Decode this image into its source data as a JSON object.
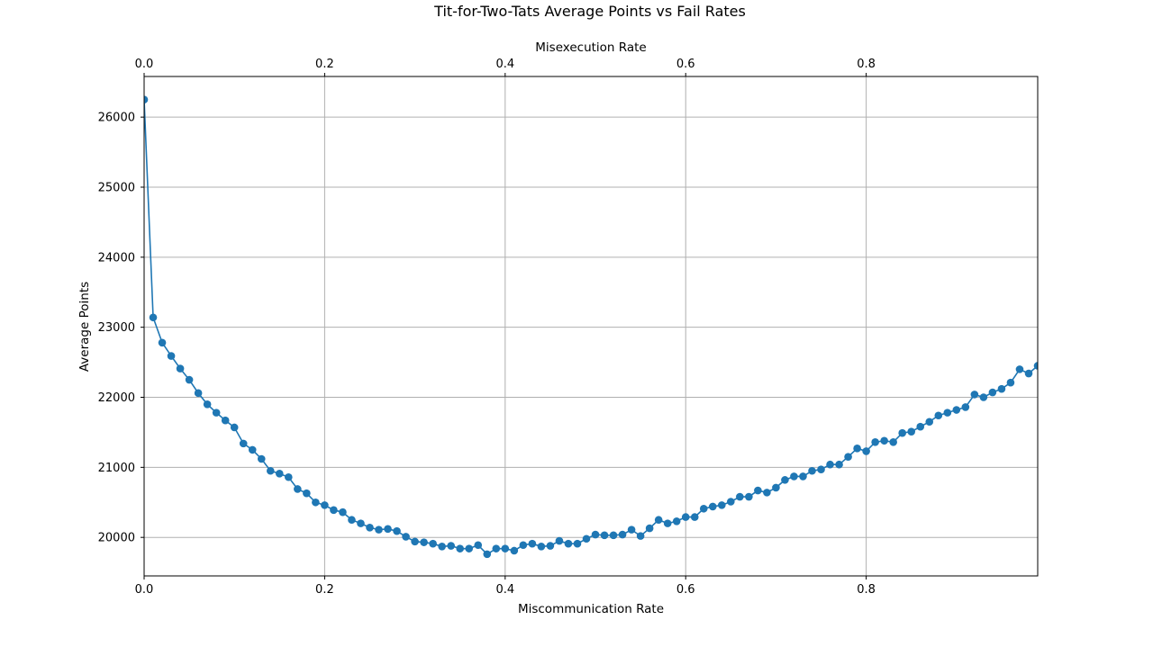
{
  "chart_data": {
    "type": "line",
    "title": "Tit-for-Two-Tats Average Points vs Fail Rates",
    "xlabel": "Miscommunication Rate",
    "x2label": "Misexecution Rate",
    "ylabel": "Average Points",
    "xlim": [
      0,
      0.99
    ],
    "ylim": [
      19450,
      26580
    ],
    "grid": true,
    "x_ticks": [
      0,
      0.2,
      0.4,
      0.6,
      0.8
    ],
    "x_tick_labels": [
      "0.0",
      "0.2",
      "0.4",
      "0.6",
      "0.8"
    ],
    "x2_tick_labels": [
      "0.0",
      "0.2",
      "0.4",
      "0.6",
      "0.8"
    ],
    "y_ticks": [
      20000,
      21000,
      22000,
      23000,
      24000,
      25000,
      26000
    ],
    "y_tick_labels": [
      "20000",
      "21000",
      "22000",
      "23000",
      "24000",
      "25000",
      "26000"
    ],
    "series": [
      {
        "name": "Average Points",
        "color": "#1f77b4",
        "x": [
          0.0,
          0.01,
          0.02,
          0.03,
          0.04,
          0.05,
          0.06,
          0.07,
          0.08,
          0.09,
          0.1,
          0.11,
          0.12,
          0.13,
          0.14,
          0.15,
          0.16,
          0.17,
          0.18,
          0.19,
          0.2,
          0.21,
          0.22,
          0.23,
          0.24,
          0.25,
          0.26,
          0.27,
          0.28,
          0.29,
          0.3,
          0.31,
          0.32,
          0.33,
          0.34,
          0.35,
          0.36,
          0.37,
          0.38,
          0.39,
          0.4,
          0.41,
          0.42,
          0.43,
          0.44,
          0.45,
          0.46,
          0.47,
          0.48,
          0.49,
          0.5,
          0.51,
          0.52,
          0.53,
          0.54,
          0.55,
          0.56,
          0.57,
          0.58,
          0.59,
          0.6,
          0.61,
          0.62,
          0.63,
          0.64,
          0.65,
          0.66,
          0.67,
          0.68,
          0.69,
          0.7,
          0.71,
          0.72,
          0.73,
          0.74,
          0.75,
          0.76,
          0.77,
          0.78,
          0.79,
          0.8,
          0.81,
          0.82,
          0.83,
          0.84,
          0.85,
          0.86,
          0.87,
          0.88,
          0.89,
          0.9,
          0.91,
          0.92,
          0.93,
          0.94,
          0.95,
          0.96,
          0.97,
          0.98,
          0.99
        ],
        "y": [
          26250,
          23140,
          22780,
          22590,
          22410,
          22250,
          22060,
          21900,
          21780,
          21670,
          21570,
          21340,
          21250,
          21120,
          20950,
          20910,
          20860,
          20690,
          20630,
          20500,
          20460,
          20390,
          20360,
          20250,
          20200,
          20140,
          20110,
          20120,
          20090,
          20010,
          19940,
          19930,
          19910,
          19870,
          19880,
          19840,
          19840,
          19890,
          19760,
          19840,
          19840,
          19810,
          19890,
          19910,
          19870,
          19880,
          19950,
          19910,
          19910,
          19980,
          20040,
          20030,
          20030,
          20040,
          20110,
          20020,
          20130,
          20250,
          20200,
          20230,
          20290,
          20290,
          20410,
          20440,
          20460,
          20510,
          20580,
          20580,
          20670,
          20640,
          20710,
          20820,
          20870,
          20870,
          20950,
          20970,
          21040,
          21040,
          21150,
          21270,
          21230,
          21360,
          21380,
          21360,
          21490,
          21510,
          21580,
          21650,
          21740,
          21780,
          21820,
          21860,
          22040,
          22000,
          22070,
          22120,
          22210,
          22400,
          22340,
          22450
        ]
      }
    ]
  }
}
